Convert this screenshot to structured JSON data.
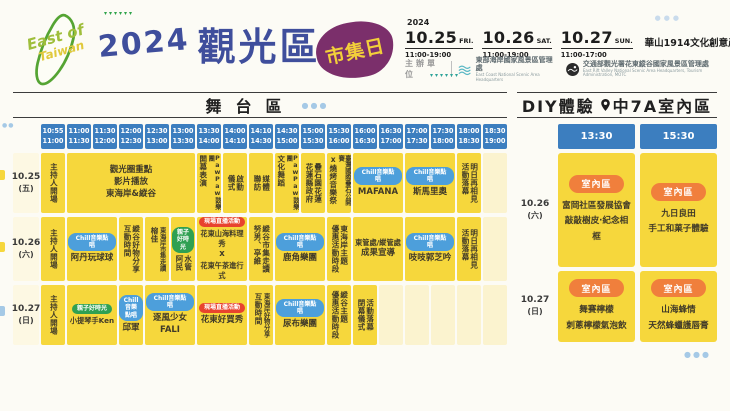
{
  "header": {
    "logo": {
      "line1": "East of",
      "line2": "Taiwan"
    },
    "year": "2024",
    "title": "觀光區",
    "badge": "市集日",
    "dates_year": "2024",
    "dates": [
      {
        "date": "10.25",
        "day": "FRI.",
        "time": "11:00-19:00"
      },
      {
        "date": "10.26",
        "day": "SAT.",
        "time": "11:00-19:00"
      },
      {
        "date": "10.27",
        "day": "SUN.",
        "time": "11:00-17:00"
      }
    ],
    "venue": "華山1914文化創意產業園區",
    "organizer_label": "主辦單位",
    "organizers": [
      {
        "name": "東部海岸國家風景區管理處",
        "en": "East Coast National Scenic Area Headquarters"
      },
      {
        "name": "交通部觀光署花東縱谷國家風景區管理處",
        "en": "East Rift Valley National Scenic Area Headquarters, Tourism Administration, MOTC"
      }
    ]
  },
  "badges": {
    "chill": {
      "label": "Chill音樂點唱",
      "color": "#4D9FDB"
    },
    "live": {
      "label": "現場直播活動",
      "color": "#E8432E"
    },
    "family": {
      "label": "親子好時光",
      "color": "#2FA052"
    },
    "indoor": {
      "label": "室內區",
      "color": "#F07F3C"
    }
  },
  "stage": {
    "title": "舞台區",
    "time_slots": [
      [
        "10:55",
        "11:00"
      ],
      [
        "11:00",
        "11:30"
      ],
      [
        "11:30",
        "12:00"
      ],
      [
        "12:00",
        "12:30"
      ],
      [
        "12:30",
        "13:00"
      ],
      [
        "13:00",
        "13:30"
      ],
      [
        "13:30",
        "14:00"
      ],
      [
        "14:00",
        "14:10"
      ],
      [
        "14:10",
        "14:30"
      ],
      [
        "14:30",
        "15:00"
      ],
      [
        "15:00",
        "15:30"
      ],
      [
        "15:30",
        "16:00"
      ],
      [
        "16:00",
        "16:30"
      ],
      [
        "16:30",
        "17:00"
      ],
      [
        "17:00",
        "17:30"
      ],
      [
        "17:30",
        "18:00"
      ],
      [
        "18:00",
        "18:30"
      ],
      [
        "18:30",
        "19:00"
      ]
    ],
    "rows": [
      {
        "date": "10.25",
        "day": "(五)",
        "cells": [
          {
            "span": 1,
            "type": "v",
            "lines": [
              "主持人開場"
            ]
          },
          {
            "span": 5,
            "type": "h",
            "lines": [
              "觀光圈重點",
              "影片播放",
              "東海岸&縱谷"
            ]
          },
          {
            "span": 1,
            "type": "v",
            "lines": [
              "PawPaw鼓樂團",
              "開幕表演"
            ]
          },
          {
            "span": 1,
            "type": "v",
            "lines": [
              "啟動",
              "儀式"
            ]
          },
          {
            "span": 1,
            "type": "v",
            "lines": [
              "媒體",
              "聯訪"
            ]
          },
          {
            "span": 1,
            "type": "v",
            "lines": [
              "PawPaw鼓樂團",
              "文化舞蹈"
            ]
          },
          {
            "span": 1,
            "type": "v",
            "lines": [
              "疊石園花蓮",
              "花蓮縣政府"
            ]
          },
          {
            "span": 1,
            "type": "v",
            "lines": [
              "臺灣國際疊石公開賽",
              "x燒烤音樂祭"
            ]
          },
          {
            "span": 2,
            "type": "h",
            "badge": "chill",
            "lines": [
              "MAFANA"
            ]
          },
          {
            "span": 2,
            "type": "h",
            "badge": "chill",
            "lines": [
              "斯馬里奧"
            ]
          },
          {
            "span": 1,
            "type": "v",
            "lines": [
              "明日再相見",
              "活動落幕"
            ]
          },
          {
            "span": 1,
            "type": "empty"
          }
        ]
      },
      {
        "date": "10.26",
        "day": "(六)",
        "cells": [
          {
            "span": 1,
            "type": "v",
            "lines": [
              "主持人開場"
            ]
          },
          {
            "span": 2,
            "type": "h",
            "badge": "chill",
            "lines": [
              "阿丹玩球球"
            ]
          },
          {
            "span": 1,
            "type": "v",
            "lines": [
              "縱谷好物分享",
              "互動時間"
            ]
          },
          {
            "span": 1,
            "type": "v",
            "lines": [
              "東海岸市集走讀",
              "榕佳"
            ]
          },
          {
            "span": 1,
            "type": "v",
            "badge": "family",
            "lines": [
              "水管",
              "阿民"
            ]
          },
          {
            "span": 2,
            "type": "h",
            "badge": "live",
            "lines": [
              "花東山海料理秀",
              "x",
              "花東午茶進行式"
            ]
          },
          {
            "span": 1,
            "type": "v",
            "lines": [
              "縱谷市集走讀",
              "努男、亭維"
            ]
          },
          {
            "span": 2,
            "type": "h",
            "badge": "chill",
            "lines": [
              "鹿角樂團"
            ]
          },
          {
            "span": 1,
            "type": "v",
            "lines": [
              "東海岸主題",
              "優惠活動時段"
            ]
          },
          {
            "span": 2,
            "type": "h",
            "lines": [
              "東管處/縱管處",
              "成果宣導"
            ]
          },
          {
            "span": 2,
            "type": "h",
            "badge": "chill",
            "lines": [
              "吱吱郭芝吟"
            ]
          },
          {
            "span": 1,
            "type": "v",
            "lines": [
              "明日再相見",
              "活動落幕"
            ]
          },
          {
            "span": 1,
            "type": "empty"
          }
        ]
      },
      {
        "date": "10.27",
        "day": "(日)",
        "cells": [
          {
            "span": 1,
            "type": "v",
            "lines": [
              "主持人開場"
            ]
          },
          {
            "span": 2,
            "type": "h",
            "badge": "family",
            "lines": [
              "小提琴手Ken"
            ]
          },
          {
            "span": 1,
            "type": "h",
            "badge": "chill",
            "lines": [
              "邱軍"
            ]
          },
          {
            "span": 2,
            "type": "h",
            "badge": "chill",
            "lines": [
              "逐風少女",
              "FALI"
            ]
          },
          {
            "span": 2,
            "type": "h",
            "badge": "live",
            "lines": [
              "花東好買秀"
            ]
          },
          {
            "span": 1,
            "type": "v",
            "lines": [
              "東海岸好物分享",
              "互動時間"
            ]
          },
          {
            "span": 2,
            "type": "h",
            "badge": "chill",
            "lines": [
              "尿布樂團"
            ]
          },
          {
            "span": 1,
            "type": "v",
            "lines": [
              "縱谷主題",
              "優惠活動時段"
            ]
          },
          {
            "span": 1,
            "type": "v",
            "lines": [
              "活動落幕",
              "閉幕儀式"
            ]
          },
          {
            "span": 1,
            "type": "empty"
          },
          {
            "span": 1,
            "type": "empty"
          },
          {
            "span": 1,
            "type": "empty"
          },
          {
            "span": 1,
            "type": "empty"
          },
          {
            "span": 1,
            "type": "empty"
          }
        ]
      }
    ]
  },
  "diy": {
    "title": "DIY體驗",
    "location": "中7A室內區",
    "times": [
      "13:30",
      "15:30"
    ],
    "rows": [
      {
        "date": "10.26",
        "day": "(六)",
        "cells": [
          {
            "badge": "indoor",
            "lines": [
              "富岡社區發展協會",
              "敲敲樹皮·紀念相框"
            ]
          },
          {
            "badge": "indoor",
            "lines": [
              "九日良田",
              "手工和菓子體驗"
            ]
          }
        ]
      },
      {
        "date": "10.27",
        "day": "(日)",
        "cells": [
          {
            "badge": "indoor",
            "lines": [
              "舞賽檸檬",
              "刺蔥檸檬氣泡飲"
            ]
          },
          {
            "badge": "indoor",
            "lines": [
              "山海蜂情",
              "天然蜂蠟護唇膏"
            ]
          }
        ]
      }
    ]
  },
  "colors": {
    "cell_yellow": "#F6D73C",
    "cell_pale": "#FBF3CF",
    "time_blue": "#3C7EBF",
    "title_blue": "#3F4E9C",
    "badge_purple": "#7B2F6B"
  }
}
